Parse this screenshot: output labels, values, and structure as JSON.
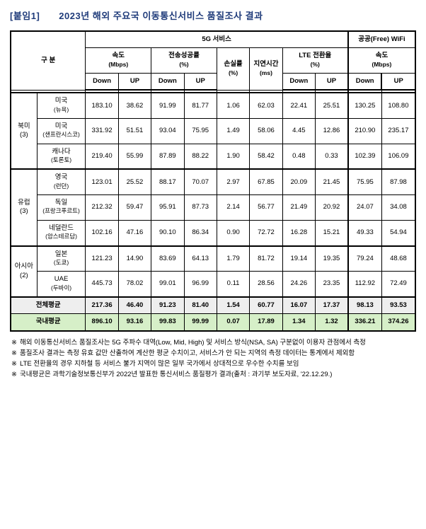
{
  "title": "[붙임1]　　2023년 해외 주요국 이동통신서비스 품질조사 결과",
  "headers": {
    "category": "구 분",
    "fiveG": "5G 서비스",
    "wifi": "공공(Free) WiFi",
    "speed": "속도",
    "speedUnit": "(Mbps)",
    "tx": "전송성공률",
    "txUnit": "(%)",
    "loss": "손실률",
    "lossUnit": "(%)",
    "latency": "지연시간",
    "latencyUnit": "(ms)",
    "lte": "LTE 전환율",
    "lteUnit": "(%)",
    "down": "Down",
    "up": "UP"
  },
  "regions": {
    "na": {
      "label": "북미",
      "count": "(3)"
    },
    "eu": {
      "label": "유럽",
      "count": "(3)"
    },
    "as": {
      "label": "아시아",
      "count": "(2)"
    }
  },
  "rows": [
    {
      "country": "미국",
      "city": "(뉴욕)",
      "v": [
        "183.10",
        "38.62",
        "91.99",
        "81.77",
        "1.06",
        "62.03",
        "22.41",
        "25.51",
        "130.25",
        "108.80"
      ]
    },
    {
      "country": "미국",
      "city": "(샌프란시스코)",
      "v": [
        "331.92",
        "51.51",
        "93.04",
        "75.95",
        "1.49",
        "58.06",
        "4.45",
        "12.86",
        "210.90",
        "235.17"
      ]
    },
    {
      "country": "캐나다",
      "city": "(토론토)",
      "v": [
        "219.40",
        "55.99",
        "87.89",
        "88.22",
        "1.90",
        "58.42",
        "0.48",
        "0.33",
        "102.39",
        "106.09"
      ]
    },
    {
      "country": "영국",
      "city": "(런던)",
      "v": [
        "123.01",
        "25.52",
        "88.17",
        "70.07",
        "2.97",
        "67.85",
        "20.09",
        "21.45",
        "75.95",
        "87.98"
      ]
    },
    {
      "country": "독일",
      "city": "(프랑크푸르트)",
      "v": [
        "212.32",
        "59.47",
        "95.91",
        "87.73",
        "2.14",
        "56.77",
        "21.49",
        "20.92",
        "24.07",
        "34.08"
      ]
    },
    {
      "country": "네덜란드",
      "city": "(암스테르담)",
      "v": [
        "102.16",
        "47.16",
        "90.10",
        "86.34",
        "0.90",
        "72.72",
        "16.28",
        "15.21",
        "49.33",
        "54.94"
      ]
    },
    {
      "country": "일본",
      "city": "(도쿄)",
      "v": [
        "121.23",
        "14.90",
        "83.69",
        "64.13",
        "1.79",
        "81.72",
        "19.14",
        "19.35",
        "79.24",
        "48.68"
      ]
    },
    {
      "country": "UAE",
      "city": "(두바이)",
      "v": [
        "445.73",
        "78.02",
        "99.01",
        "96.99",
        "0.11",
        "28.56",
        "24.26",
        "23.35",
        "112.92",
        "72.49"
      ]
    }
  ],
  "totals": {
    "overseas": {
      "label": "전체평균",
      "v": [
        "217.36",
        "46.40",
        "91.23",
        "81.40",
        "1.54",
        "60.77",
        "16.07",
        "17.37",
        "98.13",
        "93.53"
      ]
    },
    "domestic": {
      "label": "국내평균",
      "v": [
        "896.10",
        "93.16",
        "99.83",
        "99.99",
        "0.07",
        "17.89",
        "1.34",
        "1.32",
        "336.21",
        "374.26"
      ]
    }
  },
  "notes": [
    "해외 이동통신서비스 품질조사는 5G 주파수 대역(Low, Mid, High) 및 서비스 방식(NSA, SA) 구분없이 이용자 관점에서 측정",
    "품질조사 결과는 측정 유효 값만 산출하여 계산한 평균 수치이고, 서비스가 안 되는 지역의 측정 데이터는 통계에서 제외함",
    "LTE 전환율의 경우 지하철 등 서비스 불가 지역이 많은 일부 국가에서 상대적으로 우수한 수치를 보임",
    "국내평균은 과학기술정보통신부가 2022년 발표한 통신서비스 품질평가 결과(출처 : 과기부 보도자료, '22.12.29.)"
  ],
  "bullet": "※",
  "colors": {
    "title": "#1f3b7a",
    "border": "#000000",
    "summaryBg": "#eeeeee",
    "greenBg": "#d6efc8"
  },
  "colWidths": [
    "6.5%",
    "12%",
    "8.1%",
    "8.1%",
    "8.1%",
    "8.1%",
    "8.1%",
    "8.1%",
    "8.1%",
    "8.1%",
    "8.3%",
    "8.3%"
  ]
}
